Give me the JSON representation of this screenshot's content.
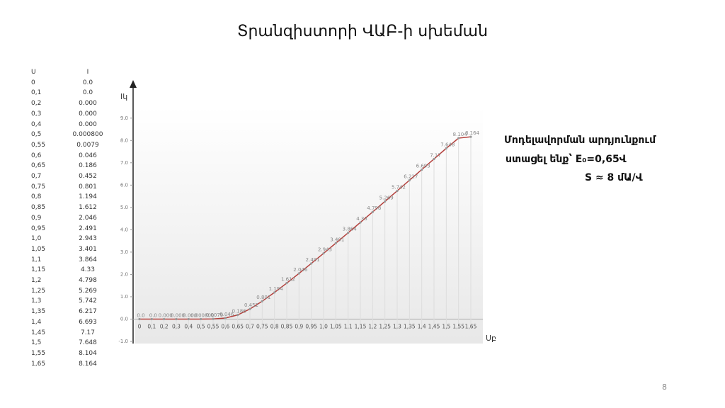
{
  "title": "Տրանզիստորի ՎԱԲ-ի սխեման",
  "table": {
    "header": [
      "U",
      "I"
    ],
    "rows": [
      [
        "0",
        "0.0"
      ],
      [
        "0,1",
        "0.0"
      ],
      [
        "0,2",
        "0.000"
      ],
      [
        "0,3",
        "0.000"
      ],
      [
        "0,4",
        "0.000"
      ],
      [
        "0,5",
        "0.000800"
      ],
      [
        "0,55",
        "0.0079"
      ],
      [
        "0,6",
        "0.046"
      ],
      [
        "0,65",
        "0.186"
      ],
      [
        "0,7",
        "0.452"
      ],
      [
        "0,75",
        "0.801"
      ],
      [
        "0,8",
        "1.194"
      ],
      [
        "0,85",
        "1.612"
      ],
      [
        "0,9",
        "2.046"
      ],
      [
        "0,95",
        "2.491"
      ],
      [
        "1,0",
        "2.943"
      ],
      [
        "1,05",
        "3.401"
      ],
      [
        "1,1",
        "3.864"
      ],
      [
        "1,15",
        "4.33"
      ],
      [
        "1,2",
        "4.798"
      ],
      [
        "1,25",
        "5.269"
      ],
      [
        "1,3",
        "5.742"
      ],
      [
        "1,35",
        "6.217"
      ],
      [
        "1,4",
        "6.693"
      ],
      [
        "1,45",
        "7.17"
      ],
      [
        "1,5",
        "7.648"
      ],
      [
        "1,55",
        "8.104"
      ],
      [
        "1,65",
        "8.164"
      ]
    ]
  },
  "chart_data": {
    "type": "line",
    "x_label": "Uբ",
    "y_label": "Iկ",
    "categories": [
      "0",
      "0,1",
      "0,2",
      "0,3",
      "0,4",
      "0,5",
      "0,55",
      "0,6",
      "0,65",
      "0,7",
      "0,75",
      "0,8",
      "0,85",
      "0,9",
      "0,95",
      "1,0",
      "1,05",
      "1,1",
      "1,15",
      "1,2",
      "1,25",
      "1,3",
      "1,35",
      "1,4",
      "1,45",
      "1,5",
      "1,55",
      "1,65"
    ],
    "values": [
      0,
      0,
      0,
      0,
      0,
      0.0008,
      0.0079,
      0.046,
      0.186,
      0.452,
      0.801,
      1.194,
      1.612,
      2.046,
      2.491,
      2.943,
      3.401,
      3.864,
      4.33,
      4.798,
      5.269,
      5.742,
      6.217,
      6.693,
      7.17,
      7.648,
      8.104,
      8.164
    ],
    "value_labels": [
      "0.0",
      "0.0",
      "0.000",
      "0.000",
      "0.000",
      "0.000800",
      "0.0079",
      "0.046",
      "0.186",
      "0.452",
      "0.801",
      "1.194",
      "1.612",
      "2.046",
      "2.491",
      "2.943",
      "3.401",
      "3.864",
      "4.33",
      "4.798",
      "5.269",
      "5.742",
      "6.217",
      "6.693",
      "7.17",
      "7.648",
      "8.104",
      "8.164"
    ],
    "color": "#b5403c",
    "ylim": [
      -1,
      9.5
    ],
    "yticks": [
      {
        "value": -1,
        "label": "-1.0"
      },
      {
        "value": 0,
        "label": "0.0"
      },
      {
        "value": 1,
        "label": "1.0"
      },
      {
        "value": 2,
        "label": "2.0"
      },
      {
        "value": 3,
        "label": "3.0"
      },
      {
        "value": 4,
        "label": "4.0"
      },
      {
        "value": 5,
        "label": "5.0"
      },
      {
        "value": 6,
        "label": "6.0"
      },
      {
        "value": 7,
        "label": "7.0"
      },
      {
        "value": 8,
        "label": "8.0"
      },
      {
        "value": 9,
        "label": "9.0"
      }
    ]
  },
  "notes": [
    "Մոդելավորման արդյունքում",
    "ստացել ենք՝ E₀=0,65Վ",
    "S ≈ 8 մԱ/Վ"
  ],
  "page_number": "8"
}
